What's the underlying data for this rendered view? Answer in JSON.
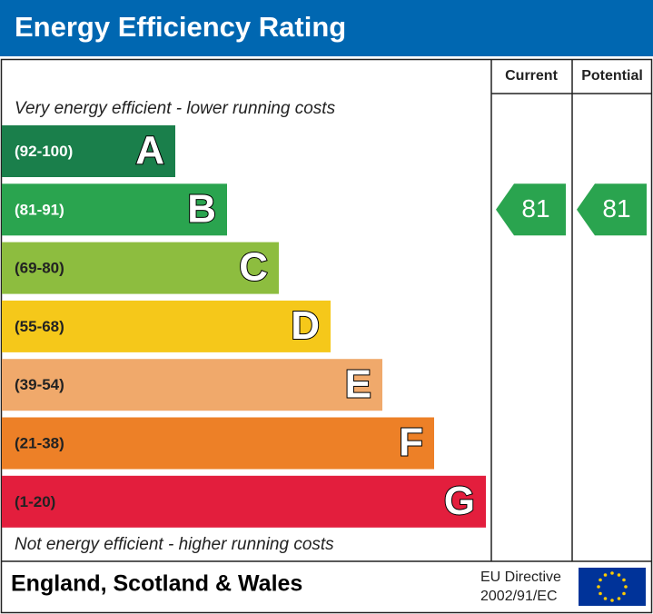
{
  "header": {
    "title": "Energy Efficiency Rating"
  },
  "columns": {
    "current": "Current",
    "potential": "Potential"
  },
  "top_note": "Very energy efficient - lower running costs",
  "bottom_note": "Not energy efficient - higher running costs",
  "bands": [
    {
      "range": "(92-100)",
      "letter": "A",
      "color": "#1a7f4b"
    },
    {
      "range": "(81-91)",
      "letter": "B",
      "color": "#2aa44f"
    },
    {
      "range": "(69-80)",
      "letter": "C",
      "color": "#8dbd3f"
    },
    {
      "range": "(55-68)",
      "letter": "D",
      "color": "#f5c81a"
    },
    {
      "range": "(39-54)",
      "letter": "E",
      "color": "#f0a96b"
    },
    {
      "range": "(21-38)",
      "letter": "F",
      "color": "#ed8027"
    },
    {
      "range": "(1-20)",
      "letter": "G",
      "color": "#e31e3d"
    }
  ],
  "ratings": {
    "current": 81,
    "potential": 81
  },
  "footer": {
    "region": "England, Scotland & Wales",
    "directive_line1": "EU Directive",
    "directive_line2": "2002/91/EC"
  }
}
